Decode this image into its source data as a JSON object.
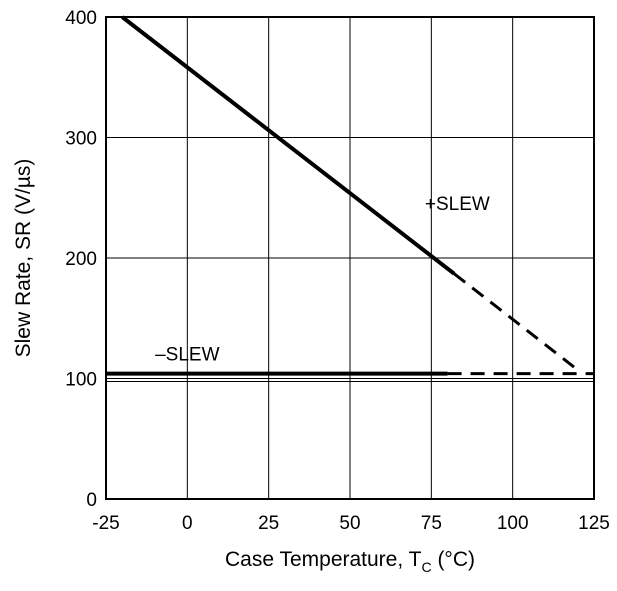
{
  "chart_data": {
    "type": "line",
    "title": "",
    "xlabel": "Case Temperature, T",
    "xlabel_subscript": "C",
    "xlabel_suffix": " (°C)",
    "ylabel": "Slew Rate, SR (V/µs)",
    "xlim": [
      -25,
      125
    ],
    "ylim": [
      0,
      400
    ],
    "xticks": [
      -25,
      0,
      25,
      50,
      75,
      100,
      125
    ],
    "yticks": [
      0,
      100,
      200,
      300,
      400
    ],
    "grid": true,
    "reference_line_y": 100,
    "series": [
      {
        "name": "+SLEW",
        "color": "#000000",
        "x": [
          -20,
          82
        ],
        "y": [
          400,
          187
        ],
        "style": "solid",
        "extension": {
          "x": [
            82,
            121
          ],
          "y": [
            187,
            105
          ],
          "style": "dashed"
        },
        "label_at": [
          83,
          240
        ]
      },
      {
        "name": "–SLEW",
        "color": "#000000",
        "x": [
          -25,
          80
        ],
        "y": [
          104,
          104
        ],
        "style": "solid",
        "extension": {
          "x": [
            80,
            125
          ],
          "y": [
            104,
            104
          ],
          "style": "dashed"
        },
        "label_at": [
          0,
          115
        ]
      }
    ]
  }
}
